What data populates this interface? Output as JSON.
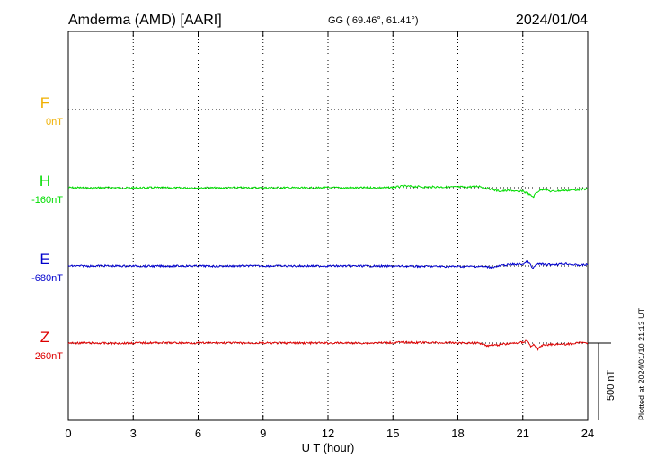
{
  "header": {
    "station": "Amderma (AMD)  [AARI]",
    "coords": "GG ( 69.46°,  61.41°)",
    "date": "2024/01/04"
  },
  "side_note": "Plotted at 2024/01/10 21:13 UT",
  "scale_label": "500 nT",
  "colors": {
    "F": "#f0b000",
    "H": "#00dd00",
    "E": "#0000cc",
    "Z": "#dd0000",
    "axis": "#000000"
  },
  "chart_data": {
    "type": "line",
    "xlabel": "U T (hour)",
    "xlim": [
      0,
      24
    ],
    "xticks": [
      "0",
      "3",
      "6",
      "9",
      "12",
      "15",
      "18",
      "21",
      "24"
    ],
    "scale_bar_nT": 500,
    "series": [
      {
        "name": "F",
        "offset_label": "0nT",
        "values": []
      },
      {
        "name": "H",
        "offset_label": "-160nT",
        "values": [
          [
            0,
            0
          ],
          [
            0.5,
            0
          ],
          [
            1,
            -3
          ],
          [
            1.5,
            0
          ],
          [
            2,
            0
          ],
          [
            3,
            -2
          ],
          [
            4,
            0
          ],
          [
            5,
            -2
          ],
          [
            6,
            0
          ],
          [
            7,
            -2
          ],
          [
            8,
            0
          ],
          [
            9,
            -1
          ],
          [
            10,
            0
          ],
          [
            11,
            -2
          ],
          [
            12,
            0
          ],
          [
            13,
            -1
          ],
          [
            14,
            0
          ],
          [
            14.8,
            0
          ],
          [
            15,
            2
          ],
          [
            15.5,
            10
          ],
          [
            16,
            8
          ],
          [
            16.5,
            4
          ],
          [
            17,
            5
          ],
          [
            17.5,
            4
          ],
          [
            18,
            4
          ],
          [
            18.5,
            5
          ],
          [
            19,
            10
          ],
          [
            19.2,
            0
          ],
          [
            19.4,
            -5
          ],
          [
            19.6,
            -10
          ],
          [
            19.8,
            -20
          ],
          [
            20,
            -22
          ],
          [
            20.5,
            -18
          ],
          [
            20.8,
            -28
          ],
          [
            21,
            -20
          ],
          [
            21.1,
            -30
          ],
          [
            21.2,
            -35
          ],
          [
            21.3,
            -45
          ],
          [
            21.5,
            -60
          ],
          [
            21.6,
            -35
          ],
          [
            21.8,
            -15
          ],
          [
            22,
            -8
          ],
          [
            22.3,
            -25
          ],
          [
            22.6,
            -20
          ],
          [
            23,
            -18
          ],
          [
            23.3,
            -15
          ],
          [
            23.6,
            -12
          ],
          [
            24,
            -8
          ]
        ]
      },
      {
        "name": "E",
        "offset_label": "-680nT",
        "values": [
          [
            0,
            0
          ],
          [
            1,
            0
          ],
          [
            1.5,
            2
          ],
          [
            2,
            0
          ],
          [
            3,
            0
          ],
          [
            4,
            -1
          ],
          [
            5,
            0
          ],
          [
            6,
            0
          ],
          [
            7,
            -1
          ],
          [
            8,
            0
          ],
          [
            9,
            0
          ],
          [
            10,
            0
          ],
          [
            11,
            0
          ],
          [
            12,
            0
          ],
          [
            13,
            0
          ],
          [
            14,
            0
          ],
          [
            15,
            -2
          ],
          [
            16,
            -2
          ],
          [
            17,
            -3
          ],
          [
            18,
            -4
          ],
          [
            19,
            -3
          ],
          [
            19.5,
            -8
          ],
          [
            19.8,
            -5
          ],
          [
            20,
            3
          ],
          [
            20.5,
            10
          ],
          [
            21,
            12
          ],
          [
            21.2,
            25
          ],
          [
            21.3,
            20
          ],
          [
            21.45,
            -18
          ],
          [
            21.6,
            5
          ],
          [
            21.8,
            15
          ],
          [
            22,
            8
          ],
          [
            22.5,
            10
          ],
          [
            23,
            15
          ],
          [
            23.5,
            5
          ],
          [
            24,
            8
          ]
        ]
      },
      {
        "name": "Z",
        "offset_label": "260nT",
        "values": [
          [
            0,
            0
          ],
          [
            1,
            0
          ],
          [
            2,
            -2
          ],
          [
            3,
            0
          ],
          [
            4,
            2
          ],
          [
            5,
            1
          ],
          [
            6,
            0
          ],
          [
            7,
            1
          ],
          [
            8,
            0
          ],
          [
            9,
            0
          ],
          [
            10,
            0
          ],
          [
            11,
            0
          ],
          [
            12,
            0
          ],
          [
            13,
            0
          ],
          [
            14,
            0
          ],
          [
            15,
            3
          ],
          [
            15.5,
            5
          ],
          [
            16,
            3
          ],
          [
            17,
            2
          ],
          [
            18,
            1
          ],
          [
            19,
            0
          ],
          [
            19.2,
            -8
          ],
          [
            19.4,
            -18
          ],
          [
            19.6,
            -10
          ],
          [
            19.8,
            -14
          ],
          [
            20,
            -8
          ],
          [
            20.5,
            -3
          ],
          [
            21,
            5
          ],
          [
            21.2,
            18
          ],
          [
            21.3,
            -5
          ],
          [
            21.4,
            -25
          ],
          [
            21.5,
            -10
          ],
          [
            21.7,
            -38
          ],
          [
            21.9,
            -15
          ],
          [
            22.2,
            -10
          ],
          [
            22.6,
            -6
          ],
          [
            23,
            -8
          ],
          [
            23.5,
            0
          ],
          [
            24,
            2
          ]
        ]
      }
    ]
  }
}
